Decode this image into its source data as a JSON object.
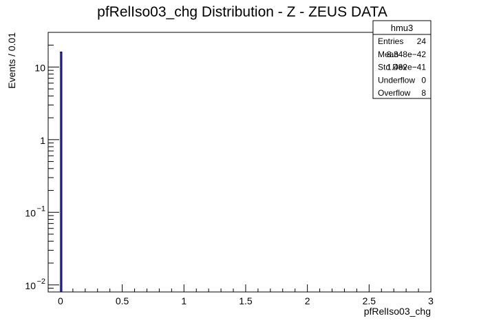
{
  "chart_data": {
    "type": "bar",
    "title": "pfRelIso03_chg Distribution - Z - ZEUS DATA",
    "xlabel": "pfRelIso03_chg",
    "ylabel": "Events / 0.01",
    "xlim": [
      -0.1,
      3.0
    ],
    "ylim": [
      0.008,
      30
    ],
    "y_scale": "log",
    "bin_width": 0.01,
    "x_ticks": [
      {
        "value": 0,
        "label": "0"
      },
      {
        "value": 0.5,
        "label": "0.5"
      },
      {
        "value": 1,
        "label": "1"
      },
      {
        "value": 1.5,
        "label": "1.5"
      },
      {
        "value": 2,
        "label": "2"
      },
      {
        "value": 2.5,
        "label": "2.5"
      },
      {
        "value": 3,
        "label": "3"
      }
    ],
    "y_ticks": [
      {
        "value": 0.01,
        "base": "10",
        "exp": "−2"
      },
      {
        "value": 0.1,
        "base": "10",
        "exp": "−1"
      },
      {
        "value": 1,
        "base": "1",
        "exp": ""
      },
      {
        "value": 10,
        "base": "10",
        "exp": ""
      }
    ],
    "bins": [
      {
        "x_low": 0.0,
        "x_high": 0.01,
        "value": 16
      }
    ],
    "line_color": "#00008b",
    "grid": false,
    "legend": "none",
    "stats_box": {
      "title": "hmu3",
      "placement": "top-right",
      "rows": [
        {
          "label": "Entries",
          "value": "24"
        },
        {
          "label": "Mean",
          "value": "8.348e−42"
        },
        {
          "label": "Std Dev",
          "value": "1.482e−41"
        },
        {
          "label": "Underflow",
          "value": "0"
        },
        {
          "label": "Overflow",
          "value": "8"
        }
      ]
    }
  }
}
